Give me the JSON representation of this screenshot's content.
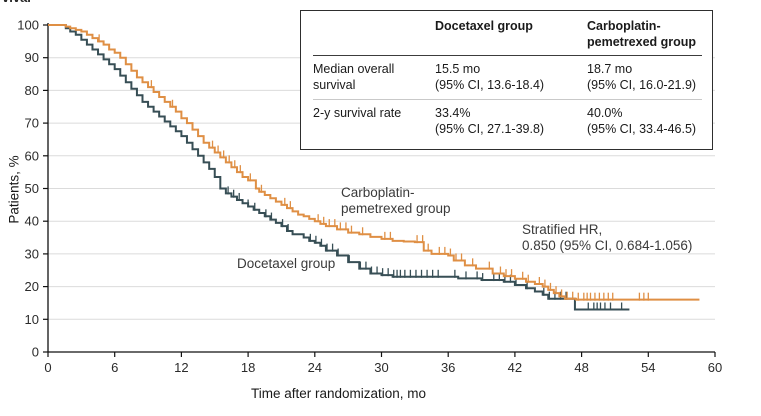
{
  "page": {
    "cropped_title_fragment": "vival"
  },
  "chart_data": {
    "type": "line",
    "subtype": "kaplan-meier-step",
    "title": "",
    "xlabel": "Time after randomization, mo",
    "ylabel": "Patients, %",
    "xlim": [
      0,
      60
    ],
    "ylim": [
      0,
      100
    ],
    "x_ticks": [
      0,
      6,
      12,
      18,
      24,
      30,
      36,
      42,
      48,
      54,
      60
    ],
    "y_ticks": [
      0,
      10,
      20,
      30,
      40,
      50,
      60,
      70,
      80,
      90,
      100
    ],
    "grid": "horizontal-only",
    "grid_color": "#dbdbdb",
    "axis_color": "#111111",
    "legend_position": "inline-curve-labels",
    "series": [
      {
        "name": "Docetaxel group",
        "color": "#374E55",
        "points": [
          [
            0,
            100
          ],
          [
            1.6,
            99
          ],
          [
            2,
            98
          ],
          [
            2.5,
            97
          ],
          [
            3,
            95.5
          ],
          [
            3.5,
            94
          ],
          [
            4,
            92.5
          ],
          [
            4.5,
            91
          ],
          [
            5,
            89.5
          ],
          [
            5.5,
            88
          ],
          [
            6,
            86.5
          ],
          [
            6.5,
            84.5
          ],
          [
            7,
            82.5
          ],
          [
            7.5,
            80.5
          ],
          [
            8,
            78.5
          ],
          [
            8.5,
            76.5
          ],
          [
            9,
            75
          ],
          [
            9.5,
            73.5
          ],
          [
            10,
            72
          ],
          [
            10.5,
            70.5
          ],
          [
            11,
            69
          ],
          [
            11.5,
            67.5
          ],
          [
            12,
            66
          ],
          [
            12.5,
            64
          ],
          [
            13,
            62
          ],
          [
            13.5,
            60
          ],
          [
            14,
            58
          ],
          [
            14.5,
            56
          ],
          [
            15,
            53.5
          ],
          [
            15.5,
            50
          ],
          [
            16,
            48.5
          ],
          [
            16.5,
            47.5
          ],
          [
            17,
            46.5
          ],
          [
            17.5,
            45.5
          ],
          [
            18,
            44.5
          ],
          [
            18.5,
            43.5
          ],
          [
            19,
            42.5
          ],
          [
            19.5,
            41.5
          ],
          [
            20,
            40.5
          ],
          [
            20.5,
            39.5
          ],
          [
            21,
            38.5
          ],
          [
            21.5,
            37
          ],
          [
            22,
            36
          ],
          [
            23,
            35
          ],
          [
            23.5,
            34
          ],
          [
            24,
            33.4
          ],
          [
            24.5,
            32.5
          ],
          [
            25,
            31
          ],
          [
            26,
            29.5
          ],
          [
            27,
            27.5
          ],
          [
            28,
            25.5
          ],
          [
            29,
            24
          ],
          [
            30,
            23.5
          ],
          [
            31,
            23
          ],
          [
            36.9,
            22.5
          ],
          [
            39,
            22
          ],
          [
            41,
            21.5
          ],
          [
            42,
            20.5
          ],
          [
            43,
            19.5
          ],
          [
            43.8,
            18.5
          ],
          [
            44.5,
            17.5
          ],
          [
            45,
            16.3
          ],
          [
            47.4,
            13
          ],
          [
            52.3,
            13
          ]
        ],
        "censor_times": [
          16.2,
          16.7,
          17.2,
          18.0,
          18.6,
          19.6,
          20.1,
          21.1,
          21.6,
          23.6,
          24.1,
          24.6,
          25.1,
          25.6,
          26.1,
          27.1,
          28.1,
          28.6,
          29.1,
          29.6,
          30.1,
          30.6,
          31.1,
          31.4,
          31.7,
          32.1,
          32.6,
          33.1,
          33.6,
          34.1,
          34.6,
          35.1,
          36.6,
          37.6,
          38.6,
          39.1,
          40.1,
          40.6,
          41.1,
          41.6,
          42.1,
          43.1,
          44.6,
          45.1,
          45.6,
          46.1,
          46.6,
          48.6,
          49.1,
          49.4,
          49.7,
          50.1,
          50.6,
          51.6
        ]
      },
      {
        "name": "Carboplatin-pemetrexed group",
        "color": "#DF8F44",
        "points": [
          [
            0,
            100
          ],
          [
            1.6,
            99.5
          ],
          [
            2,
            99
          ],
          [
            2.5,
            98.5
          ],
          [
            3,
            98
          ],
          [
            3.5,
            97
          ],
          [
            4,
            96
          ],
          [
            4.5,
            95
          ],
          [
            5,
            94
          ],
          [
            5.5,
            92.5
          ],
          [
            6,
            91.5
          ],
          [
            6.5,
            90
          ],
          [
            7,
            88
          ],
          [
            7.5,
            86
          ],
          [
            8,
            84
          ],
          [
            8.5,
            82.5
          ],
          [
            9,
            81
          ],
          [
            9.5,
            79.5
          ],
          [
            10,
            78
          ],
          [
            10.5,
            76.5
          ],
          [
            11,
            75
          ],
          [
            11.5,
            73.5
          ],
          [
            12,
            71.5
          ],
          [
            12.5,
            70
          ],
          [
            13,
            68
          ],
          [
            13.5,
            66
          ],
          [
            14,
            64
          ],
          [
            14.5,
            62.5
          ],
          [
            15,
            61
          ],
          [
            15.5,
            59.5
          ],
          [
            16,
            58
          ],
          [
            16.5,
            56.5
          ],
          [
            17,
            55
          ],
          [
            17.5,
            53.5
          ],
          [
            18,
            52.5
          ],
          [
            18.7,
            50
          ],
          [
            19,
            49
          ],
          [
            19.5,
            48
          ],
          [
            20,
            47
          ],
          [
            20.5,
            46
          ],
          [
            21,
            45
          ],
          [
            21.5,
            44
          ],
          [
            22,
            43
          ],
          [
            22.5,
            42
          ],
          [
            23,
            41.5
          ],
          [
            23.5,
            40.7
          ],
          [
            24,
            40
          ],
          [
            24.5,
            39.2
          ],
          [
            25,
            38.5
          ],
          [
            26,
            37.5
          ],
          [
            27,
            36.5
          ],
          [
            28,
            36
          ],
          [
            29,
            35.2
          ],
          [
            30,
            34.6
          ],
          [
            31,
            34
          ],
          [
            32,
            33.8
          ],
          [
            33,
            33.6
          ],
          [
            33.8,
            31
          ],
          [
            34.5,
            30
          ],
          [
            36,
            29.5
          ],
          [
            36.5,
            28
          ],
          [
            37.5,
            26.5
          ],
          [
            38.5,
            25.5
          ],
          [
            40,
            24
          ],
          [
            41,
            23.2
          ],
          [
            42,
            22.4
          ],
          [
            43,
            21.5
          ],
          [
            43.8,
            20.8
          ],
          [
            44.5,
            20
          ],
          [
            45,
            19
          ],
          [
            45.5,
            18
          ],
          [
            46,
            17
          ],
          [
            46.5,
            16.3
          ],
          [
            47.5,
            16
          ],
          [
            58.6,
            16
          ]
        ],
        "censor_times": [
          4.6,
          9.3,
          11.2,
          14.8,
          15.3,
          15.8,
          16.3,
          16.8,
          17.3,
          18.2,
          18.7,
          19.2,
          21.3,
          21.8,
          24.3,
          24.8,
          25.3,
          25.8,
          26.3,
          26.8,
          27.3,
          28.3,
          30.3,
          30.8,
          33.2,
          33.7,
          34.2,
          35.2,
          35.7,
          36.2,
          36.7,
          37.2,
          38.2,
          39.7,
          40.7,
          41.2,
          41.7,
          42.7,
          43.2,
          44.2,
          44.7,
          45.2,
          45.7,
          46.2,
          46.7,
          47.2,
          47.7,
          48.2,
          48.5,
          48.8,
          49.2,
          49.6,
          50.0,
          50.4,
          50.8,
          53.2,
          53.6,
          54.0
        ]
      }
    ]
  },
  "inset_table": {
    "headers": {
      "col1": "",
      "col2": "Docetaxel group",
      "col3": "Carboplatin-pemetrexed group"
    },
    "rows": [
      {
        "label": "Median overall survival",
        "docetaxel_value": "15.5 mo",
        "docetaxel_ci": "(95% CI, 13.6-18.4)",
        "carboplatin_value": "18.7 mo",
        "carboplatin_ci": "(95% CI, 16.0-21.9)"
      },
      {
        "label": "2-y survival rate",
        "docetaxel_value": "33.4%",
        "docetaxel_ci": "(95% CI, 27.1-39.8)",
        "carboplatin_value": "40.0%",
        "carboplatin_ci": "(95% CI, 33.4-46.5)"
      }
    ]
  },
  "annotations": {
    "carboplatin_curve_label": "Carboplatin-pemetrexed group",
    "docetaxel_curve_label": "Docetaxel group",
    "hr_line1": "Stratified HR,",
    "hr_line2": "0.850 (95% CI, 0.684-1.056)"
  }
}
